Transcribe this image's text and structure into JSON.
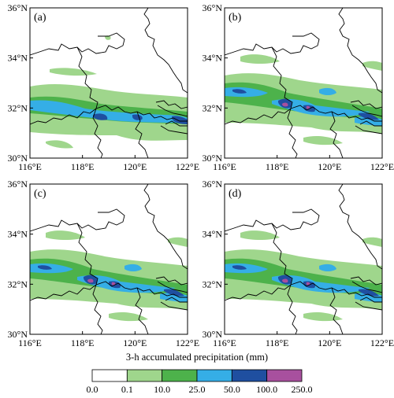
{
  "panels": [
    {
      "id": "a",
      "label": "(a)"
    },
    {
      "id": "b",
      "label": "(b)"
    },
    {
      "id": "c",
      "label": "(c)"
    },
    {
      "id": "d",
      "label": "(d)"
    }
  ],
  "axes": {
    "lon_ticks": [
      "116°E",
      "118°E",
      "120°E",
      "122°E"
    ],
    "lat_ticks": [
      "36°N",
      "34°N",
      "32°N",
      "30°N"
    ]
  },
  "colorbar": {
    "title": "3-h accumulated precipitation (mm)",
    "levels": [
      "0.0",
      "0.1",
      "10.0",
      "25.0",
      "50.0",
      "100.0",
      "250.0"
    ],
    "colors": [
      "#ffffff",
      "#9fd68c",
      "#4db24b",
      "#35aee6",
      "#1f4fa0",
      "#a8509e"
    ]
  }
}
